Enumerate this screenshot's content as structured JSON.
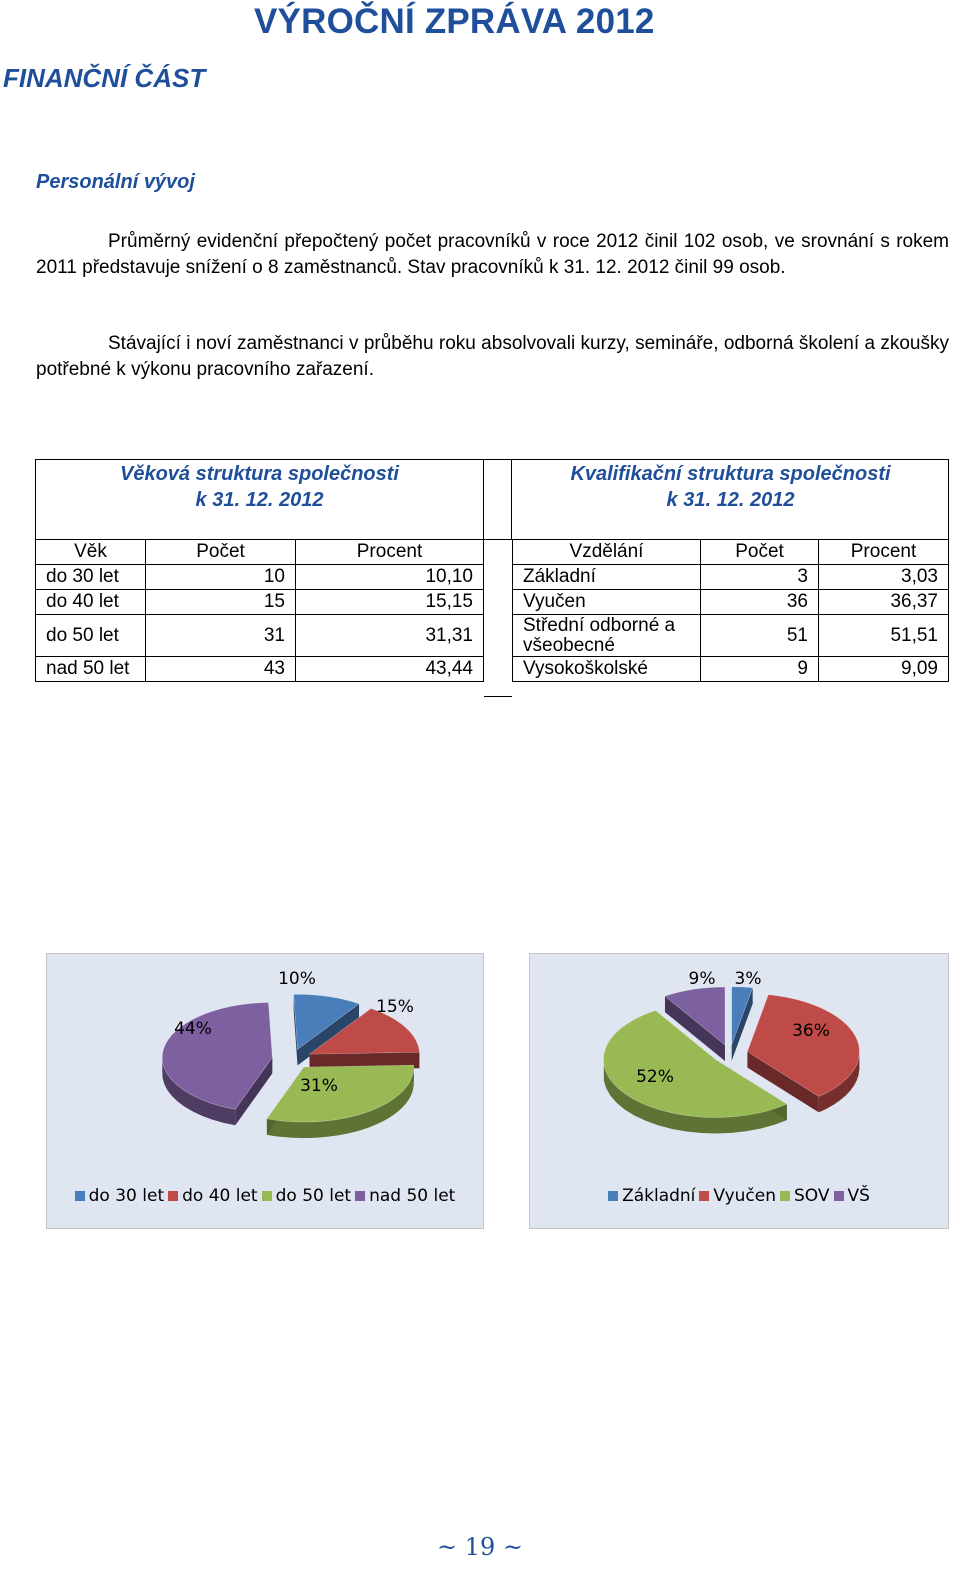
{
  "header": {
    "report_title": "VÝROČNÍ ZPRÁVA 2012",
    "section_title": "FINANČNÍ ČÁST",
    "subsection_title": "Personální vývoj"
  },
  "paragraphs": [
    "Průměrný evidenční přepočtený počet pracovníků v roce 2012 činil 102 osob, ve srovnání s rokem 2011 představuje snížení o 8 zaměstnanců. Stav pracovníků k 31. 12. 2012 činil 99 osob.",
    "Stávající i noví zaměstnanci v průběhu roku absolvovali kurzy, semináře, odborná školení a zkoušky potřebné k výkonu pracovního zařazení."
  ],
  "age_table": {
    "caption_line1": "Věková struktura společnosti",
    "caption_line2": "k 31. 12. 2012",
    "headers": [
      "Věk",
      "Počet",
      "Procent"
    ],
    "rows": [
      [
        "do 30 let",
        "10",
        "10,10"
      ],
      [
        "do 40 let",
        "15",
        "15,15"
      ],
      [
        "do 50 let",
        "31",
        "31,31"
      ],
      [
        "nad 50 let",
        "43",
        "43,44"
      ]
    ]
  },
  "qualification_table": {
    "caption_line1": "Kvalifikační struktura společnosti",
    "caption_line2": "k 31. 12. 2012",
    "headers": [
      "Vzdělání",
      "Počet",
      "Procent"
    ],
    "rows": [
      [
        "Základní",
        "3",
        "3,03"
      ],
      [
        "Vyučen",
        "36",
        "36,37"
      ],
      [
        "Střední odborné a všeobecné",
        "51",
        "51,51"
      ],
      [
        "Vysokoškolské",
        "9",
        "9,09"
      ]
    ]
  },
  "chart_data": [
    {
      "type": "pie",
      "categories": [
        "do 30 let",
        "do 40 let",
        "do 50 let",
        "nad 50 let"
      ],
      "values": [
        10,
        15,
        31,
        44
      ],
      "labels": [
        "10%",
        "15%",
        "31%",
        "44%"
      ],
      "colors": [
        "#4a7ebb",
        "#be4b48",
        "#98b954",
        "#7d60a0"
      ],
      "exploded": true,
      "legend_position": "bottom"
    },
    {
      "type": "pie",
      "categories": [
        "Základní",
        "Vyučen",
        "SOV",
        "VŠ"
      ],
      "values": [
        3,
        36,
        52,
        9
      ],
      "labels": [
        "3%",
        "36%",
        "52%",
        "9%"
      ],
      "colors": [
        "#4a7ebb",
        "#be4b48",
        "#98b954",
        "#7d60a0"
      ],
      "exploded": true,
      "legend_position": "bottom"
    }
  ],
  "footer": {
    "page_number": "~ 19 ~"
  }
}
